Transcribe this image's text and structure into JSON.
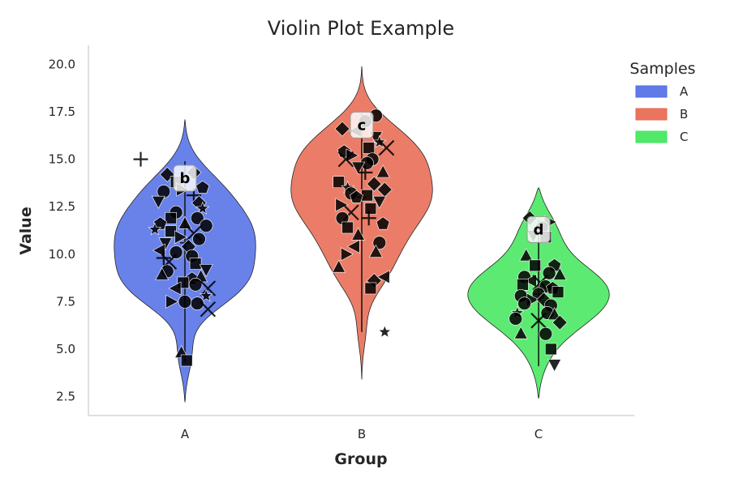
{
  "chart_data": {
    "type": "violin",
    "title": "Violin Plot Example",
    "xlabel": "Group",
    "ylabel": "Value",
    "categories": [
      "A",
      "B",
      "C"
    ],
    "ylim": [
      1.5,
      21
    ],
    "yticks": [
      "2.5",
      "5.0",
      "7.5",
      "10.0",
      "12.5",
      "15.0",
      "17.5",
      "20.0"
    ],
    "grid": false,
    "legend": {
      "title": "Samples",
      "placement": "top-right",
      "entries": [
        {
          "label": "A",
          "color": "#4f6ce6"
        },
        {
          "label": "B",
          "color": "#e8664e"
        },
        {
          "label": "C",
          "color": "#3fe65a"
        }
      ]
    },
    "series": [
      {
        "category": "A",
        "color": "#4f6ce6",
        "range": [
          2.2,
          17.1
        ],
        "whisker": [
          4.3,
          14.9
        ],
        "median": 10.6,
        "annotation": "b",
        "annotation_y": 14.0,
        "points": [
          [
            -0.25,
            15.0,
            "plus"
          ],
          [
            -0.1,
            14.2,
            "diamond"
          ],
          [
            0.05,
            14.3,
            "diamond"
          ],
          [
            -0.05,
            13.8,
            "square"
          ],
          [
            0.1,
            13.5,
            "pentagon"
          ],
          [
            -0.12,
            13.3,
            "circle"
          ],
          [
            -0.02,
            13.4,
            "tri-right"
          ],
          [
            0.05,
            13.1,
            "plus"
          ],
          [
            -0.15,
            12.8,
            "tri-down"
          ],
          [
            0.08,
            12.7,
            "diamond"
          ],
          [
            0.1,
            12.4,
            "star"
          ],
          [
            -0.05,
            12.2,
            "circle"
          ],
          [
            -0.08,
            11.9,
            "square"
          ],
          [
            0.07,
            11.9,
            "circle"
          ],
          [
            -0.14,
            11.6,
            "pentagon"
          ],
          [
            0.0,
            11.6,
            "tri-up"
          ],
          [
            0.12,
            11.5,
            "circle"
          ],
          [
            -0.17,
            11.3,
            "star"
          ],
          [
            -0.08,
            11.2,
            "square"
          ],
          [
            0.05,
            11.1,
            "x"
          ],
          [
            -0.03,
            10.9,
            "tri-right"
          ],
          [
            0.08,
            10.8,
            "circle"
          ],
          [
            -0.11,
            10.6,
            "tri-down"
          ],
          [
            0.02,
            10.4,
            "diamond"
          ],
          [
            -0.14,
            10.2,
            "tri-left"
          ],
          [
            -0.05,
            10.1,
            "circle"
          ],
          [
            0.04,
            9.9,
            "circle"
          ],
          [
            -0.12,
            9.8,
            "plus"
          ],
          [
            -0.09,
            9.6,
            "x"
          ],
          [
            0.06,
            9.5,
            "square"
          ],
          [
            0.12,
            9.2,
            "tri-down"
          ],
          [
            -0.1,
            9.1,
            "circle"
          ],
          [
            -0.13,
            8.9,
            "tri-up"
          ],
          [
            0.04,
            8.7,
            "pentagon"
          ],
          [
            0.09,
            8.8,
            "tri-up"
          ],
          [
            -0.01,
            8.5,
            "square"
          ],
          [
            0.06,
            8.4,
            "circle"
          ],
          [
            0.13,
            8.2,
            "x"
          ],
          [
            -0.05,
            8.2,
            "tri-left"
          ],
          [
            0.12,
            7.8,
            "star"
          ],
          [
            -0.08,
            7.5,
            "tri-right"
          ],
          [
            0.0,
            7.5,
            "circle"
          ],
          [
            0.07,
            7.4,
            "circle"
          ],
          [
            0.13,
            7.1,
            "x"
          ],
          [
            -0.02,
            4.8,
            "tri-up"
          ],
          [
            0.01,
            4.4,
            "square"
          ]
        ]
      },
      {
        "category": "B",
        "color": "#e8664e",
        "range": [
          3.4,
          19.9
        ],
        "whisker": [
          5.9,
          17.4
        ],
        "median": 13.0,
        "annotation": "c",
        "annotation_y": 16.8,
        "points": [
          [
            0.08,
            17.3,
            "circle"
          ],
          [
            0.02,
            17.0,
            "circle"
          ],
          [
            -0.11,
            16.6,
            "diamond"
          ],
          [
            -0.03,
            16.5,
            "tri-left"
          ],
          [
            0.08,
            16.2,
            "tri-down"
          ],
          [
            0.1,
            15.9,
            "star"
          ],
          [
            0.14,
            15.6,
            "x"
          ],
          [
            0.04,
            15.6,
            "square"
          ],
          [
            -0.1,
            15.4,
            "pentagon"
          ],
          [
            -0.06,
            15.2,
            "tri-right"
          ],
          [
            -0.09,
            15.0,
            "x"
          ],
          [
            0.06,
            15.0,
            "circle"
          ],
          [
            0.03,
            14.8,
            "circle"
          ],
          [
            -0.02,
            14.6,
            "tri-down"
          ],
          [
            0.12,
            14.3,
            "tri-up"
          ],
          [
            0.02,
            14.3,
            "plus"
          ],
          [
            -0.13,
            13.8,
            "square"
          ],
          [
            0.07,
            13.7,
            "diamond"
          ],
          [
            -0.08,
            13.5,
            "star"
          ],
          [
            0.13,
            13.4,
            "diamond"
          ],
          [
            -0.06,
            13.2,
            "circle"
          ],
          [
            0.03,
            13.1,
            "square"
          ],
          [
            -0.03,
            13.0,
            "pentagon"
          ],
          [
            0.1,
            12.8,
            "tri-down"
          ],
          [
            -0.12,
            12.6,
            "tri-right"
          ],
          [
            0.05,
            12.4,
            "square"
          ],
          [
            -0.06,
            12.2,
            "x"
          ],
          [
            -0.11,
            11.9,
            "circle"
          ],
          [
            0.04,
            11.9,
            "plus"
          ],
          [
            0.12,
            11.6,
            "pentagon"
          ],
          [
            -0.08,
            11.4,
            "square"
          ],
          [
            -0.02,
            11.0,
            "tri-up"
          ],
          [
            0.1,
            10.6,
            "circle"
          ],
          [
            -0.04,
            10.4,
            "tri-left"
          ],
          [
            0.08,
            10.1,
            "tri-up"
          ],
          [
            -0.09,
            10.0,
            "tri-right"
          ],
          [
            -0.13,
            9.3,
            "tri-up"
          ],
          [
            0.13,
            8.8,
            "tri-left"
          ],
          [
            0.07,
            8.6,
            "diamond"
          ],
          [
            0.05,
            8.2,
            "square"
          ],
          [
            0.13,
            5.9,
            "star"
          ]
        ]
      },
      {
        "category": "C",
        "color": "#3fe65a",
        "range": [
          2.4,
          13.5
        ],
        "whisker": [
          4.1,
          11.8
        ],
        "median": 7.9,
        "annotation": "d",
        "annotation_y": 11.3,
        "points": [
          [
            -0.05,
            11.9,
            "diamond"
          ],
          [
            0.06,
            11.7,
            "tri-right"
          ],
          [
            0.02,
            11.4,
            "circle"
          ],
          [
            -0.03,
            11.0,
            "tri-down"
          ],
          [
            0.04,
            10.9,
            "square"
          ],
          [
            -0.07,
            9.9,
            "tri-up"
          ],
          [
            -0.02,
            9.4,
            "square"
          ],
          [
            0.09,
            9.4,
            "pentagon"
          ],
          [
            0.06,
            9.0,
            "circle"
          ],
          [
            -0.08,
            8.8,
            "circle"
          ],
          [
            0.12,
            8.9,
            "tri-up"
          ],
          [
            -0.04,
            8.6,
            "tri-left"
          ],
          [
            0.01,
            8.5,
            "x"
          ],
          [
            -0.09,
            8.4,
            "square"
          ],
          [
            0.04,
            8.3,
            "circle"
          ],
          [
            0.08,
            8.2,
            "pentagon"
          ],
          [
            0.11,
            8.0,
            "square"
          ],
          [
            -0.1,
            7.8,
            "circle"
          ],
          [
            0.0,
            7.9,
            "circle"
          ],
          [
            -0.04,
            7.6,
            "tri-right"
          ],
          [
            0.03,
            7.6,
            "diamond"
          ],
          [
            -0.08,
            7.4,
            "circle"
          ],
          [
            0.07,
            7.3,
            "circle"
          ],
          [
            -0.12,
            6.9,
            "star"
          ],
          [
            0.05,
            6.9,
            "circle"
          ],
          [
            0.09,
            6.8,
            "tri-up"
          ],
          [
            -0.13,
            6.6,
            "circle"
          ],
          [
            0.0,
            6.5,
            "x"
          ],
          [
            0.12,
            6.4,
            "diamond"
          ],
          [
            -0.1,
            5.8,
            "tri-up"
          ],
          [
            0.04,
            5.8,
            "circle"
          ],
          [
            0.07,
            5.0,
            "square"
          ],
          [
            0.09,
            4.2,
            "tri-down"
          ]
        ]
      }
    ]
  }
}
